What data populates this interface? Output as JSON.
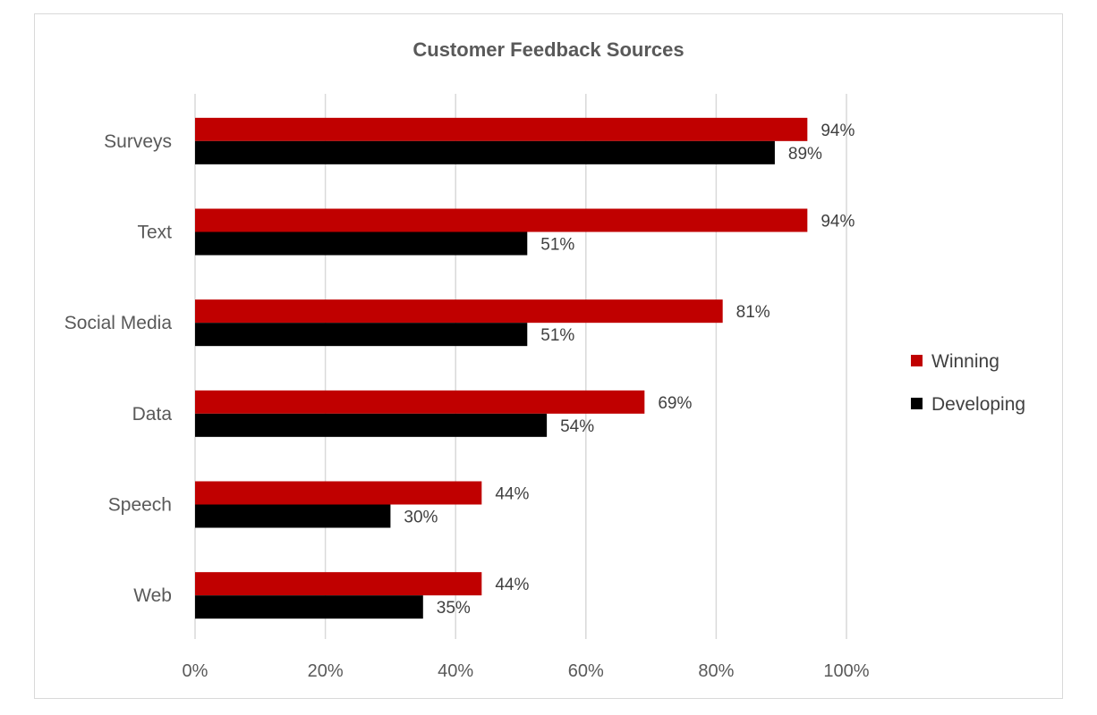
{
  "chart_data": {
    "type": "bar",
    "orientation": "horizontal",
    "title": "Customer Feedback Sources",
    "categories": [
      "Surveys",
      "Text",
      "Social Media",
      "Data",
      "Speech",
      "Web"
    ],
    "series": [
      {
        "name": "Winning",
        "color": "#c00000",
        "values": [
          94,
          94,
          81,
          69,
          44,
          44
        ]
      },
      {
        "name": "Developing",
        "color": "#000000",
        "values": [
          89,
          51,
          51,
          54,
          30,
          35
        ]
      }
    ],
    "xlim": [
      0,
      100
    ],
    "xticks": [
      "0%",
      "20%",
      "40%",
      "60%",
      "80%",
      "100%"
    ],
    "value_suffix": "%",
    "grid": true,
    "legend_position": "right"
  }
}
